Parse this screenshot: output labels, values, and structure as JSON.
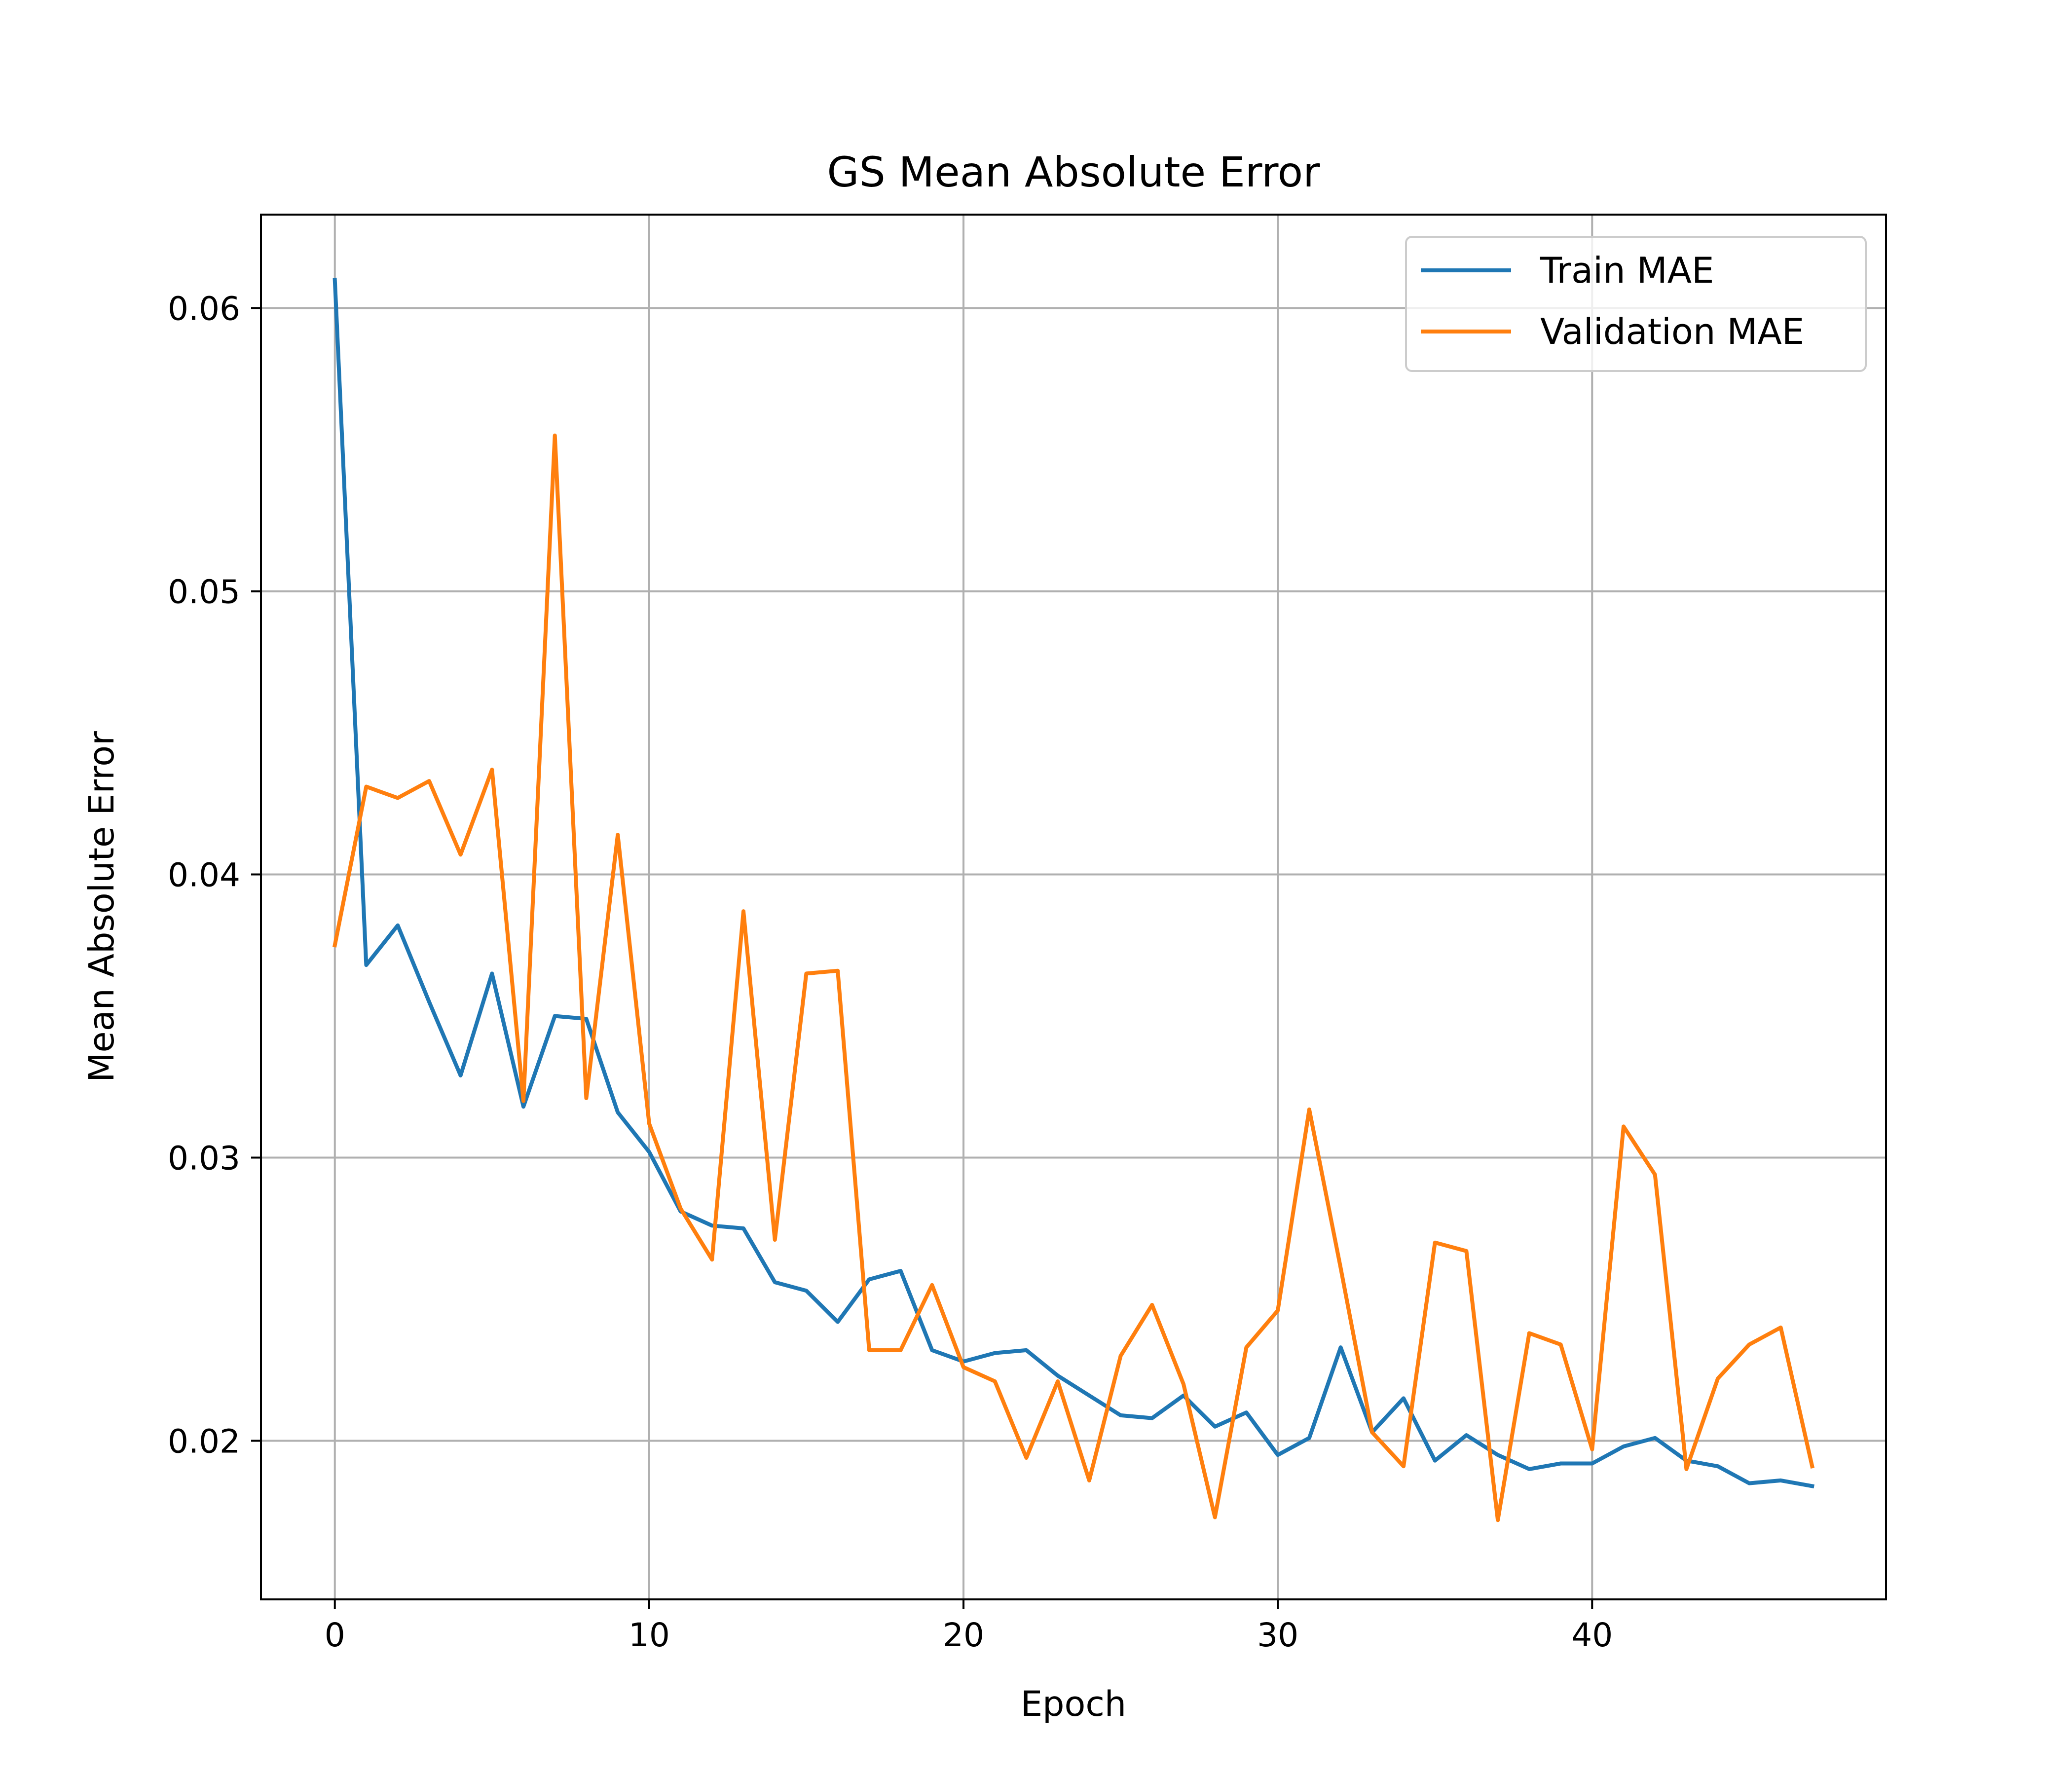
{
  "chart_data": {
    "type": "line",
    "title": "GS Mean Absolute Error",
    "xlabel": "Epoch",
    "ylabel": "Mean Absolute Error",
    "xlim": [
      -2.35,
      49.35
    ],
    "ylim": [
      0.0144,
      0.0633
    ],
    "xticks": [
      0,
      10,
      20,
      30,
      40
    ],
    "xtick_labels": [
      "0",
      "10",
      "20",
      "30",
      "40"
    ],
    "yticks": [
      0.02,
      0.03,
      0.04,
      0.05,
      0.06
    ],
    "ytick_labels": [
      "0.02",
      "0.03",
      "0.04",
      "0.05",
      "0.06"
    ],
    "grid": true,
    "legend_position": "top-right",
    "x": [
      0,
      1,
      2,
      3,
      4,
      5,
      6,
      7,
      8,
      9,
      10,
      11,
      12,
      13,
      14,
      15,
      16,
      17,
      18,
      19,
      20,
      21,
      22,
      23,
      24,
      25,
      26,
      27,
      28,
      29,
      30,
      31,
      32,
      33,
      34,
      35,
      36,
      37,
      38,
      39,
      40,
      41,
      42,
      43,
      44,
      45,
      46,
      47
    ],
    "series": [
      {
        "name": "Train MAE",
        "color": "#1f77b4",
        "values": [
          0.061,
          0.0368,
          0.0382,
          0.0355,
          0.0329,
          0.0365,
          0.0318,
          0.035,
          0.0349,
          0.0316,
          0.0302,
          0.0281,
          0.0276,
          0.0275,
          0.0256,
          0.0253,
          0.0242,
          0.0257,
          0.026,
          0.0232,
          0.0228,
          0.0231,
          0.0232,
          0.0223,
          0.0216,
          0.0209,
          0.0208,
          0.0216,
          0.0205,
          0.021,
          0.0195,
          0.0201,
          0.0233,
          0.0203,
          0.0215,
          0.0193,
          0.0202,
          0.0195,
          0.019,
          0.0192,
          0.0192,
          0.0198,
          0.0201,
          0.0193,
          0.0191,
          0.0185,
          0.0186,
          0.0184
        ]
      },
      {
        "name": "Validation MAE",
        "color": "#ff7f0e",
        "values": [
          0.0375,
          0.0431,
          0.0427,
          0.0433,
          0.0407,
          0.0437,
          0.032,
          0.0555,
          0.0321,
          0.0414,
          0.0312,
          0.0282,
          0.0264,
          0.0387,
          0.0271,
          0.0365,
          0.0366,
          0.0232,
          0.0232,
          0.0255,
          0.0226,
          0.0221,
          0.0194,
          0.0221,
          0.0186,
          0.023,
          0.0248,
          0.022,
          0.0173,
          0.0233,
          0.0246,
          0.0317,
          0.0261,
          0.0203,
          0.0191,
          0.027,
          0.0267,
          0.0172,
          0.0238,
          0.0234,
          0.0197,
          0.0311,
          0.0294,
          0.019,
          0.0222,
          0.0234,
          0.024,
          0.0191
        ]
      }
    ]
  }
}
